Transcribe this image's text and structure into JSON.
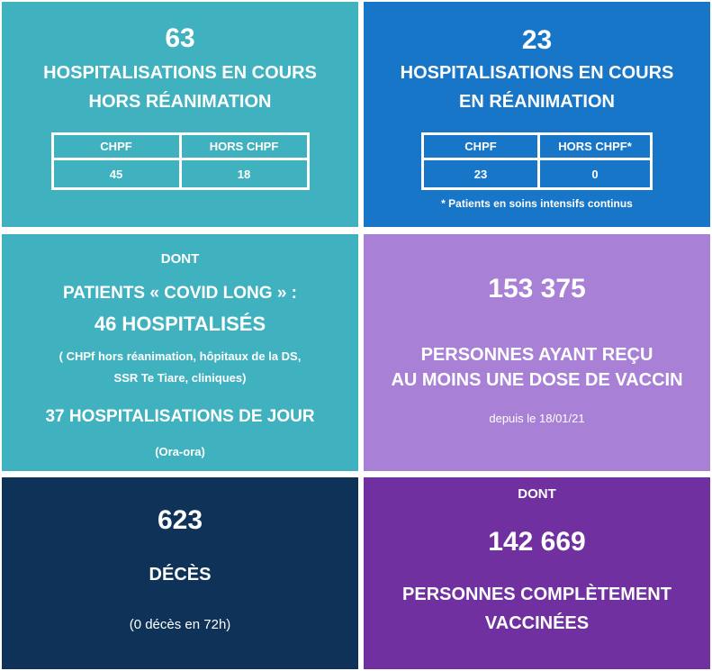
{
  "colors": {
    "teal": "#3fb1bf",
    "blue": "#1776c8",
    "lavender": "#a881d6",
    "navy": "#0f3358",
    "purple": "#7130a0"
  },
  "hors_rea": {
    "count": "63",
    "line1": "HOSPITALISATIONS EN COURS",
    "line2": "HORS RÉANIMATION",
    "table": {
      "col1": "CHPF",
      "col2": "HORS CHPF",
      "val1": "45",
      "val2": "18"
    }
  },
  "rea": {
    "count": "23",
    "line1": "HOSPITALISATIONS EN COURS",
    "line2": "EN RÉANIMATION",
    "table": {
      "col1": "CHPF",
      "col2": "HORS CHPF*",
      "val1": "23",
      "val2": "0"
    },
    "footnote": "* Patients en soins intensifs continus"
  },
  "covid_long": {
    "dont": "DONT",
    "title": "PATIENTS « COVID LONG » :",
    "hospitalises": "46 HOSPITALISÉS",
    "detail1": "( CHPf hors réanimation, hôpitaux de la DS,",
    "detail2": "SSR Te Tiare, cliniques)",
    "jour": "37 HOSPITALISATIONS DE JOUR",
    "jour_detail": "(Ora-ora)"
  },
  "vaccin_dose": {
    "count": "153 375",
    "line1": "PERSONNES AYANT REÇU",
    "line2": "AU MOINS UNE DOSE DE VACCIN",
    "since": "depuis le 18/01/21"
  },
  "deces": {
    "count": "623",
    "label": "DÉCÈS",
    "detail": "(0 décès en 72h)"
  },
  "vaccin_complet": {
    "dont": "DONT",
    "count": "142 669",
    "line1": "PERSONNES COMPLÈTEMENT",
    "line2": "VACCINÉES"
  }
}
